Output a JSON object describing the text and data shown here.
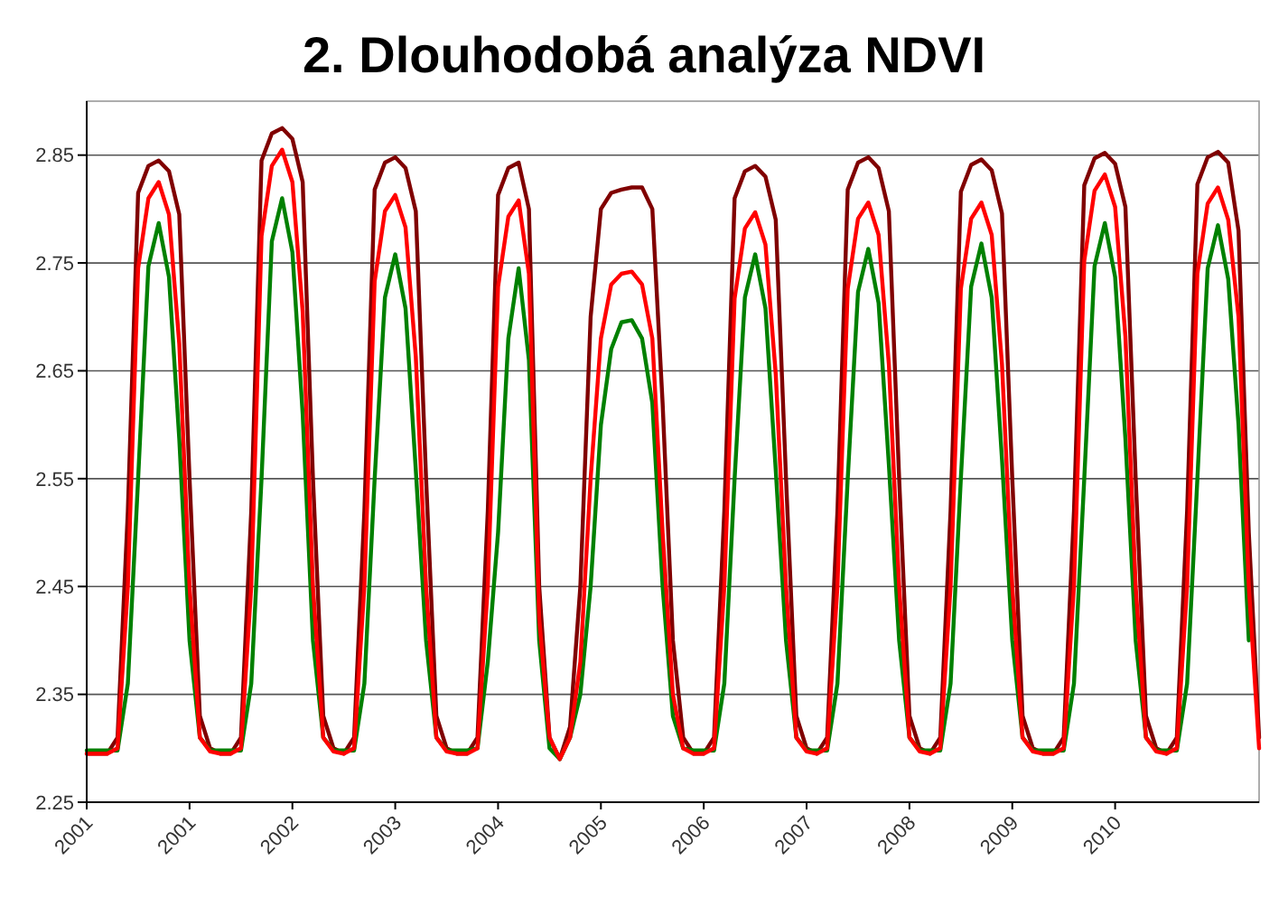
{
  "chart_data": {
    "type": "line",
    "title": "2. Dlouhodobá analýza NDVI",
    "categories": [
      "2001",
      null,
      null,
      null,
      null,
      null,
      null,
      null,
      null,
      null,
      "2001",
      null,
      null,
      null,
      null,
      null,
      null,
      null,
      null,
      null,
      "2002",
      null,
      null,
      null,
      null,
      null,
      null,
      null,
      null,
      null,
      "2003",
      null,
      null,
      null,
      null,
      null,
      null,
      null,
      null,
      null,
      "2004",
      null,
      null,
      null,
      null,
      null,
      null,
      null,
      null,
      null,
      "2005",
      null,
      null,
      null,
      null,
      null,
      null,
      null,
      null,
      null,
      "2006",
      null,
      null,
      null,
      null,
      null,
      null,
      null,
      null,
      null,
      "2007",
      null,
      null,
      null,
      null,
      null,
      null,
      null,
      null,
      null,
      "2008",
      null,
      null,
      null,
      null,
      null,
      null,
      null,
      null,
      null,
      "2009",
      null,
      null,
      null,
      null,
      null,
      null,
      null,
      null,
      null,
      "2010",
      null,
      null,
      null,
      null,
      null,
      null,
      null,
      null,
      null,
      null,
      null,
      null,
      null,
      null
    ],
    "series": [
      {
        "color": "#800000",
        "values": [
          2.295,
          2.295,
          2.295,
          2.31,
          2.52,
          2.815,
          2.84,
          2.845,
          2.835,
          2.795,
          2.55,
          2.33,
          2.3,
          2.295,
          2.295,
          2.31,
          2.52,
          2.845,
          2.87,
          2.875,
          2.865,
          2.825,
          2.55,
          2.33,
          2.3,
          2.295,
          2.31,
          2.52,
          2.818,
          2.843,
          2.848,
          2.838,
          2.798,
          2.55,
          2.33,
          2.3,
          2.295,
          2.295,
          2.31,
          2.52,
          2.813,
          2.838,
          2.843,
          2.8,
          2.45,
          2.31,
          2.29,
          2.32,
          2.45,
          2.7,
          2.8,
          2.815,
          2.818,
          2.82,
          2.82,
          2.8,
          2.62,
          2.4,
          2.31,
          2.295,
          2.295,
          2.31,
          2.52,
          2.81,
          2.835,
          2.84,
          2.83,
          2.79,
          2.55,
          2.33,
          2.3,
          2.295,
          2.31,
          2.52,
          2.818,
          2.843,
          2.848,
          2.838,
          2.798,
          2.55,
          2.33,
          2.3,
          2.295,
          2.31,
          2.52,
          2.816,
          2.841,
          2.846,
          2.836,
          2.796,
          2.55,
          2.33,
          2.3,
          2.295,
          2.295,
          2.31,
          2.52,
          2.822,
          2.847,
          2.852,
          2.842,
          2.802,
          2.55,
          2.33,
          2.3,
          2.295,
          2.31,
          2.52,
          2.823,
          2.848,
          2.853,
          2.843,
          2.78,
          2.5,
          2.31
        ]
      },
      {
        "color": "#008000",
        "values": [
          2.298,
          2.298,
          2.298,
          2.298,
          2.36,
          2.55,
          2.747,
          2.787,
          2.737,
          2.587,
          2.4,
          2.31,
          2.298,
          2.298,
          2.298,
          2.298,
          2.36,
          2.55,
          2.77,
          2.81,
          2.76,
          2.61,
          2.4,
          2.31,
          2.298,
          2.298,
          2.298,
          2.36,
          2.55,
          2.718,
          2.758,
          2.708,
          2.558,
          2.4,
          2.31,
          2.298,
          2.298,
          2.298,
          2.3,
          2.38,
          2.5,
          2.68,
          2.745,
          2.66,
          2.4,
          2.3,
          2.29,
          2.31,
          2.35,
          2.45,
          2.6,
          2.67,
          2.695,
          2.697,
          2.68,
          2.62,
          2.45,
          2.33,
          2.3,
          2.298,
          2.298,
          2.298,
          2.36,
          2.55,
          2.718,
          2.758,
          2.708,
          2.558,
          2.4,
          2.31,
          2.298,
          2.298,
          2.298,
          2.36,
          2.55,
          2.723,
          2.763,
          2.713,
          2.563,
          2.4,
          2.31,
          2.298,
          2.298,
          2.298,
          2.36,
          2.55,
          2.728,
          2.768,
          2.718,
          2.568,
          2.4,
          2.31,
          2.298,
          2.298,
          2.298,
          2.298,
          2.36,
          2.55,
          2.747,
          2.787,
          2.737,
          2.587,
          2.4,
          2.31,
          2.298,
          2.298,
          2.298,
          2.36,
          2.55,
          2.745,
          2.785,
          2.735,
          2.6,
          2.4,
          null
        ]
      },
      {
        "color": "#ff0000",
        "values": [
          2.295,
          2.295,
          2.295,
          2.3,
          2.45,
          2.745,
          2.81,
          2.825,
          2.795,
          2.675,
          2.45,
          2.31,
          2.297,
          2.295,
          2.295,
          2.3,
          2.45,
          2.775,
          2.84,
          2.855,
          2.825,
          2.705,
          2.45,
          2.31,
          2.297,
          2.295,
          2.3,
          2.45,
          2.733,
          2.798,
          2.813,
          2.783,
          2.663,
          2.45,
          2.31,
          2.297,
          2.295,
          2.295,
          2.3,
          2.45,
          2.728,
          2.793,
          2.808,
          2.74,
          2.42,
          2.31,
          2.29,
          2.31,
          2.38,
          2.55,
          2.68,
          2.73,
          2.74,
          2.742,
          2.73,
          2.68,
          2.5,
          2.35,
          2.3,
          2.295,
          2.295,
          2.3,
          2.45,
          2.717,
          2.782,
          2.797,
          2.767,
          2.647,
          2.45,
          2.31,
          2.297,
          2.295,
          2.3,
          2.45,
          2.726,
          2.791,
          2.806,
          2.776,
          2.656,
          2.45,
          2.31,
          2.297,
          2.295,
          2.3,
          2.45,
          2.726,
          2.791,
          2.806,
          2.776,
          2.656,
          2.45,
          2.31,
          2.297,
          2.295,
          2.295,
          2.3,
          2.45,
          2.752,
          2.817,
          2.832,
          2.802,
          2.682,
          2.45,
          2.31,
          2.297,
          2.295,
          2.3,
          2.45,
          2.74,
          2.805,
          2.82,
          2.79,
          2.7,
          2.45,
          2.3
        ]
      }
    ],
    "ylim": [
      2.25,
      2.9
    ],
    "yticks": [
      2.25,
      2.35,
      2.45,
      2.55,
      2.65,
      2.75,
      2.85
    ],
    "grid": "y"
  }
}
